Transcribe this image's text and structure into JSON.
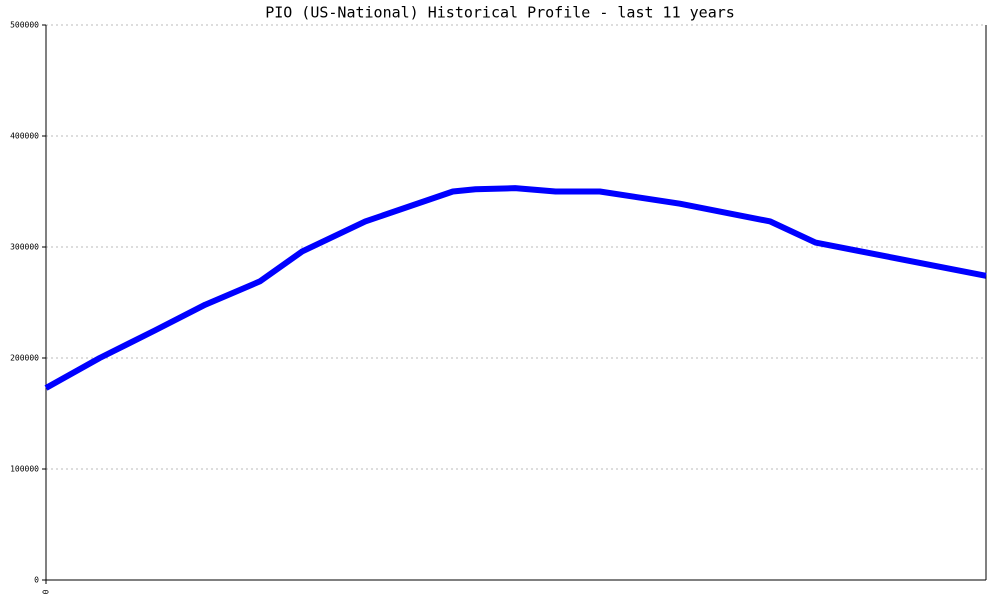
{
  "chart_data": {
    "type": "line",
    "title": "PIO (US-National) Historical Profile - last 11 years",
    "x": [
      0,
      0.57,
      1.16,
      1.69,
      2.27,
      2.72,
      3.39,
      4.32,
      4.56,
      4.98,
      5.41,
      5.88,
      6.73,
      7.69,
      8.17,
      9.98
    ],
    "values": [
      173000,
      200000,
      225000,
      248000,
      269000,
      296000,
      323000,
      350000,
      352000,
      353000,
      350000,
      350000,
      339000,
      323000,
      304000,
      274000
    ],
    "color": "#0000ff",
    "xlim": [
      0,
      9.98
    ],
    "xticks": [
      0
    ],
    "ylim": [
      0,
      500000
    ],
    "yticks": [
      0,
      100000,
      200000,
      300000,
      400000,
      500000
    ],
    "grid": true
  }
}
